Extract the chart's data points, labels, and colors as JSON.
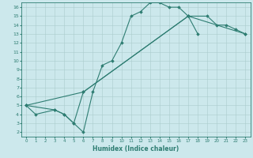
{
  "xlabel": "Humidex (Indice chaleur)",
  "bg_color": "#cce8ec",
  "line_color": "#2e7d72",
  "grid_color": "#aacccc",
  "xlim": [
    -0.5,
    23.5
  ],
  "ylim": [
    1.5,
    16.5
  ],
  "xticks": [
    0,
    1,
    2,
    3,
    4,
    5,
    6,
    7,
    8,
    9,
    10,
    11,
    12,
    13,
    14,
    15,
    16,
    17,
    18,
    19,
    20,
    21,
    22,
    23
  ],
  "yticks": [
    2,
    3,
    4,
    5,
    6,
    7,
    8,
    9,
    10,
    11,
    12,
    13,
    14,
    15,
    16
  ],
  "line1_x": [
    0,
    1,
    3,
    4,
    5,
    6,
    7,
    8,
    9,
    10,
    11,
    12,
    13,
    14,
    15,
    16,
    17,
    18
  ],
  "line1_y": [
    5,
    4,
    4.5,
    4,
    3,
    2,
    6.5,
    9.5,
    10,
    12,
    15,
    15.5,
    16.5,
    16.5,
    16,
    16,
    15,
    13
  ],
  "line2_x": [
    0,
    3,
    4,
    5,
    6,
    17,
    19,
    20,
    21,
    22,
    23
  ],
  "line2_y": [
    5,
    4.5,
    4,
    3,
    6.5,
    15,
    15,
    14,
    14,
    13.5,
    13
  ],
  "line3_x": [
    0,
    6,
    17,
    23
  ],
  "line3_y": [
    5,
    6.5,
    15,
    13
  ]
}
